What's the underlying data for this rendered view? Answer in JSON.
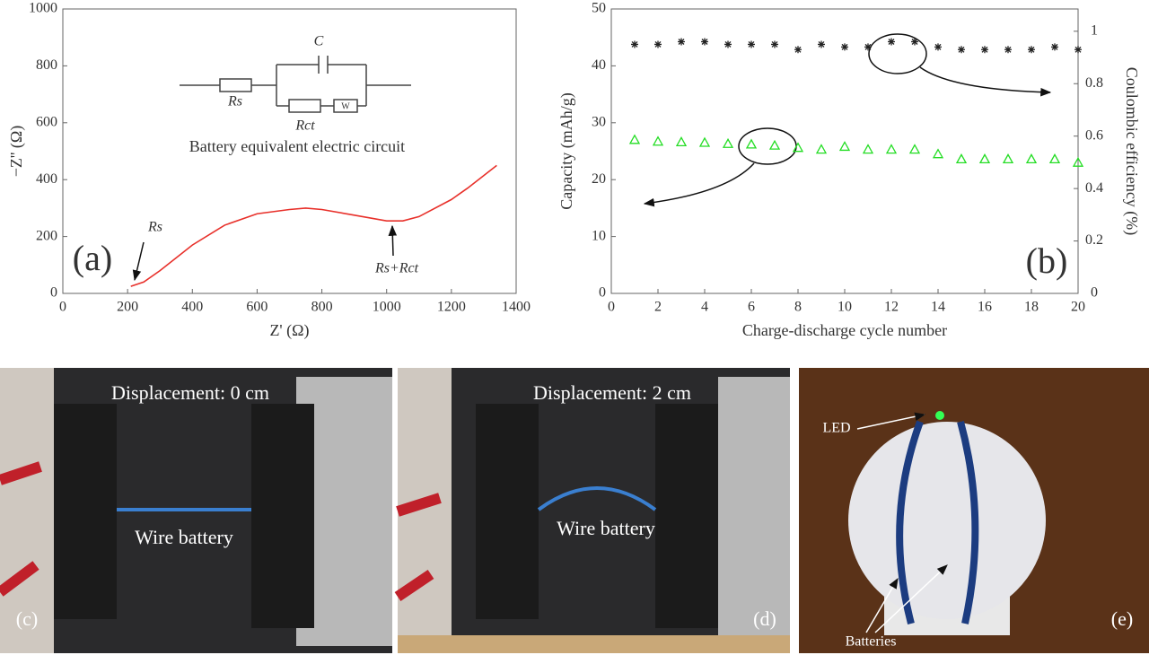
{
  "chart_data": [
    {
      "type": "line",
      "xlabel": "Z' (Ω)",
      "ylabel": "−Z'' (Ω)",
      "panel_label": "(a)",
      "x": [
        210,
        250,
        300,
        400,
        500,
        600,
        700,
        750,
        800,
        900,
        1000,
        1050,
        1100,
        1200,
        1250,
        1340
      ],
      "series": [
        {
          "color": "#e8302a",
          "values": [
            25,
            40,
            80,
            170,
            240,
            280,
            295,
            300,
            295,
            275,
            255,
            255,
            270,
            330,
            370,
            450
          ]
        }
      ],
      "xlim": [
        0,
        1400
      ],
      "xticks": [
        0,
        200,
        400,
        600,
        800,
        1000,
        1200,
        1400
      ],
      "ylim": [
        0,
        1000
      ],
      "yticks": [
        0,
        200,
        400,
        600,
        800,
        1000
      ],
      "inset": {
        "title": "Battery equivalent electric circuit",
        "labels": [
          "C",
          "Rs",
          "Rct",
          "W"
        ]
      },
      "annotations": [
        "Rs",
        "Rs+Rct"
      ]
    },
    {
      "type": "scatter",
      "xlabel": "Charge-discharge cycle number",
      "ylabel": "Capacity (mAh/g)",
      "y2label": "Coulombic efficiency (%)",
      "panel_label": "(b)",
      "x": [
        1,
        2,
        3,
        4,
        5,
        6,
        7,
        8,
        9,
        10,
        11,
        12,
        13,
        14,
        15,
        16,
        17,
        18,
        19,
        20
      ],
      "series": [
        {
          "color": "#22dd22",
          "marker": "triangle",
          "values": [
            27,
            26.7,
            26.6,
            26.5,
            26.3,
            26.2,
            26,
            25.6,
            25.3,
            25.8,
            25.3,
            25.3,
            25.3,
            24.5,
            23.6,
            23.6,
            23.6,
            23.6,
            23.6,
            23
          ]
        },
        {
          "color": "#222222",
          "marker": "star",
          "axis": "y2",
          "values": [
            0.95,
            0.95,
            0.96,
            0.96,
            0.95,
            0.95,
            0.95,
            0.93,
            0.95,
            0.94,
            0.94,
            0.96,
            0.96,
            0.94,
            0.93,
            0.93,
            0.93,
            0.93,
            0.94,
            0.93
          ]
        }
      ],
      "xlim": [
        0,
        20
      ],
      "xticks": [
        0,
        2,
        4,
        6,
        8,
        10,
        12,
        14,
        16,
        18,
        20
      ],
      "ylim": [
        0,
        50
      ],
      "yticks": [
        0,
        10,
        20,
        30,
        40,
        50
      ],
      "y2lim": [
        0,
        1.085
      ],
      "y2ticks": [
        0,
        0.2,
        0.4,
        0.6,
        0.8,
        1
      ]
    }
  ],
  "photos": [
    {
      "title": "Displacement: 0 cm",
      "label": "Wire battery",
      "tag": "(c)"
    },
    {
      "title": "Displacement: 2 cm",
      "label": "Wire battery",
      "tag": "(d)"
    },
    {
      "annotations": [
        "LED",
        "Batteries"
      ],
      "tag": "(e)"
    }
  ]
}
